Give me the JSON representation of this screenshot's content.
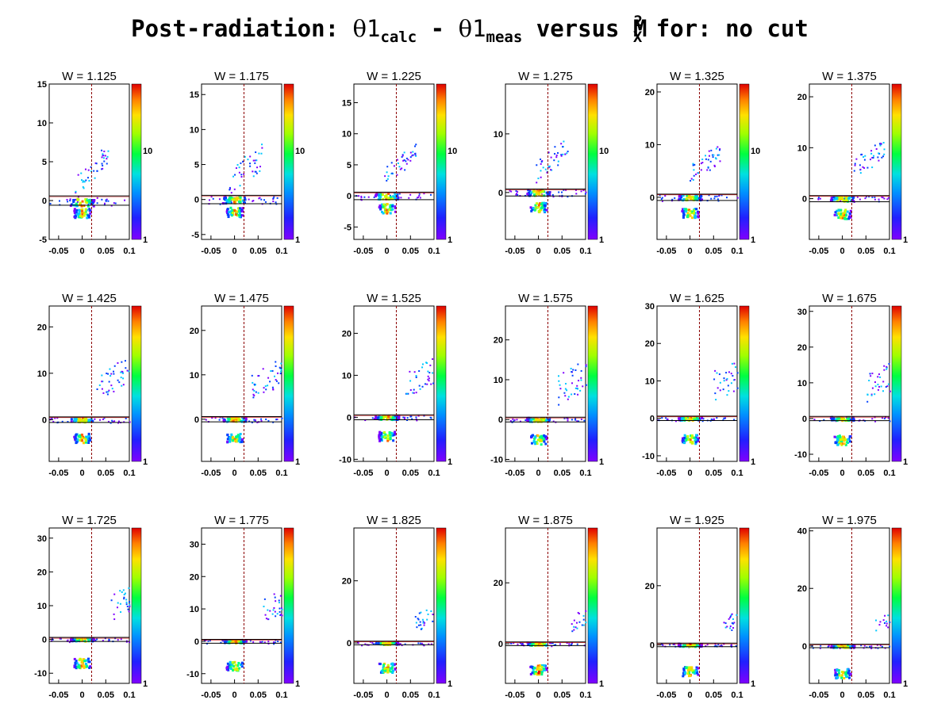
{
  "title": {
    "prefix": "Post-radiation: ",
    "theta": "θ",
    "one": "1",
    "sub_calc": "calc",
    "minus": " - ",
    "sub_meas": "meas",
    "versus": " versus M",
    "sup2": "2",
    "subX": "X",
    "suffix": " for: no cut"
  },
  "chart_data": {
    "type": "heatmap",
    "xlim": [
      -0.07,
      0.1
    ],
    "xticks": [
      -0.05,
      0,
      0.05,
      0.1
    ],
    "xtick_labels": [
      "-0.05",
      "0",
      "0.05",
      "0.1"
    ],
    "vertical_cut_x": 0.02,
    "band_y": [
      -0.6,
      0.6
    ],
    "colorscale": [
      "#7f00ff",
      "#0040ff",
      "#00c8ff",
      "#00ff7f",
      "#c8ff00",
      "#ffd000",
      "#ff6000",
      "#e80000"
    ],
    "panels": [
      {
        "title": "W = 1.125",
        "ylim": [
          -5,
          15
        ],
        "yticks": [
          -5,
          0,
          5,
          10,
          15
        ],
        "cb_labels": [
          "1",
          "10"
        ],
        "main": [
          0,
          -0.2
        ],
        "lower": [
          0.0,
          -1.6
        ],
        "upper": [
          0.005,
          3.0,
          1.5
        ],
        "scat_y": [
          -1,
          5
        ]
      },
      {
        "title": "W = 1.175",
        "ylim": [
          -5.7,
          16.5
        ],
        "yticks": [
          -5,
          0,
          5,
          10,
          15
        ],
        "cb_labels": [
          "1",
          "10"
        ],
        "main": [
          0,
          0
        ],
        "lower": [
          0.0,
          -1.8
        ],
        "upper": [
          0.008,
          3.5,
          2
        ],
        "scat_y": [
          -1,
          6
        ]
      },
      {
        "title": "W = 1.225",
        "ylim": [
          -7,
          18
        ],
        "yticks": [
          -5,
          0,
          5,
          10,
          15
        ],
        "cb_labels": [
          "1",
          "10"
        ],
        "main": [
          0,
          0
        ],
        "lower": [
          0.0,
          -2.0
        ],
        "upper": [
          0.015,
          4.5,
          1.5
        ],
        "scat_y": [
          -1,
          7
        ]
      },
      {
        "title": "W = 1.275",
        "ylim": [
          -8,
          18.5
        ],
        "yticks": [
          0,
          10
        ],
        "cb_labels": [
          "1",
          "10"
        ],
        "main": [
          0,
          0
        ],
        "lower": [
          0.0,
          -2.5
        ],
        "upper": [
          0.015,
          5,
          2
        ],
        "scat_y": [
          -1,
          8
        ]
      },
      {
        "title": "W = 1.325",
        "ylim": [
          -8,
          21.5
        ],
        "yticks": [
          0,
          10,
          20
        ],
        "cb_labels": [
          "1",
          "10"
        ],
        "main": [
          0,
          0
        ],
        "lower": [
          0.0,
          -3
        ],
        "upper": [
          0.02,
          6,
          2
        ],
        "scat_y": [
          -1,
          9
        ]
      },
      {
        "title": "W = 1.375",
        "ylim": [
          -8,
          22.5
        ],
        "yticks": [
          0,
          10,
          20
        ],
        "cb_labels": [
          "1"
        ],
        "main": [
          0,
          0
        ],
        "lower": [
          0.0,
          -3
        ],
        "upper": [
          0.04,
          7,
          2
        ],
        "scat_y": [
          -1,
          10
        ]
      },
      {
        "title": "W = 1.425",
        "ylim": [
          -9,
          24.5
        ],
        "yticks": [
          0,
          10,
          20
        ],
        "cb_labels": [
          "1"
        ],
        "main": [
          0,
          0
        ],
        "lower": [
          0.0,
          -4
        ],
        "upper": [
          0.05,
          8,
          3
        ],
        "scat_y": [
          -1,
          11
        ]
      },
      {
        "title": "W = 1.475",
        "ylim": [
          -9.5,
          25.5
        ],
        "yticks": [
          0,
          10,
          20
        ],
        "cb_labels": [
          "1"
        ],
        "main": [
          0,
          0
        ],
        "lower": [
          0.0,
          -4.2
        ],
        "upper": [
          0.05,
          8,
          3
        ],
        "scat_y": [
          -1,
          12
        ]
      },
      {
        "title": "W = 1.525",
        "ylim": [
          -10.5,
          26.5
        ],
        "yticks": [
          -10,
          0,
          10,
          20
        ],
        "cb_labels": [
          "1"
        ],
        "main": [
          0,
          0
        ],
        "lower": [
          0.0,
          -4.5
        ],
        "upper": [
          0.06,
          9,
          3
        ],
        "scat_y": [
          -1,
          13
        ]
      },
      {
        "title": "W = 1.575",
        "ylim": [
          -10.5,
          28.5
        ],
        "yticks": [
          -10,
          0,
          10,
          20
        ],
        "cb_labels": [
          "1"
        ],
        "main": [
          0,
          0
        ],
        "lower": [
          0.0,
          -5
        ],
        "upper": [
          0.06,
          9,
          4
        ],
        "scat_y": [
          -1,
          14
        ]
      },
      {
        "title": "W = 1.625",
        "ylim": [
          -11.5,
          30
        ],
        "yticks": [
          -10,
          0,
          10,
          20,
          30
        ],
        "cb_labels": [
          "1"
        ],
        "main": [
          0,
          0
        ],
        "lower": [
          0.0,
          -5.5
        ],
        "upper": [
          0.07,
          10,
          4
        ],
        "scat_y": [
          -1,
          15
        ]
      },
      {
        "title": "W = 1.675",
        "ylim": [
          -12,
          31.5
        ],
        "yticks": [
          -10,
          0,
          10,
          20,
          30
        ],
        "cb_labels": [
          "1"
        ],
        "main": [
          0,
          0
        ],
        "lower": [
          0.0,
          -6
        ],
        "upper": [
          0.07,
          10,
          4
        ],
        "scat_y": [
          -1,
          16
        ]
      },
      {
        "title": "W = 1.725",
        "ylim": [
          -13,
          33
        ],
        "yticks": [
          -10,
          0,
          10,
          20,
          30
        ],
        "cb_labels": [
          "1"
        ],
        "main": [
          0,
          0
        ],
        "lower": [
          0.0,
          -7
        ],
        "upper": [
          0.08,
          11,
          4
        ],
        "scat_y": [
          -1,
          16
        ]
      },
      {
        "title": "W = 1.775",
        "ylim": [
          -13,
          35
        ],
        "yticks": [
          -10,
          0,
          10,
          20,
          30
        ],
        "cb_labels": [
          "1"
        ],
        "main": [
          0,
          0
        ],
        "lower": [
          0.0,
          -7.5
        ],
        "upper": [
          0.08,
          11,
          4
        ],
        "scat_y": [
          -1,
          14
        ]
      },
      {
        "title": "W = 1.825",
        "ylim": [
          -13,
          37
        ],
        "yticks": [
          0,
          20
        ],
        "cb_labels": [
          "1"
        ],
        "main": [
          0,
          0
        ],
        "lower": [
          0.0,
          -8
        ],
        "upper": [
          0.08,
          8,
          3
        ],
        "scat_y": [
          -1,
          10
        ]
      },
      {
        "title": "W = 1.875",
        "ylim": [
          -13,
          38
        ],
        "yticks": [
          0,
          20
        ],
        "cb_labels": [
          "1"
        ],
        "main": [
          0,
          0
        ],
        "lower": [
          0.0,
          -8.5
        ],
        "upper": [
          0.09,
          8,
          3
        ],
        "scat_y": [
          -1,
          10
        ]
      },
      {
        "title": "W = 1.925",
        "ylim": [
          -13,
          39.5
        ],
        "yticks": [
          0,
          20
        ],
        "cb_labels": [
          "1"
        ],
        "main": [
          0,
          0
        ],
        "lower": [
          0.0,
          -9
        ],
        "upper": [
          0.09,
          8,
          3
        ],
        "scat_y": [
          -1,
          10
        ]
      },
      {
        "title": "W = 1.975",
        "ylim": [
          -13,
          41
        ],
        "yticks": [
          0,
          20,
          40
        ],
        "cb_labels": [
          "1"
        ],
        "main": [
          0,
          0
        ],
        "lower": [
          0.0,
          -9.5
        ],
        "upper": [
          0.09,
          8,
          3
        ],
        "scat_y": [
          -1,
          10
        ]
      }
    ]
  }
}
